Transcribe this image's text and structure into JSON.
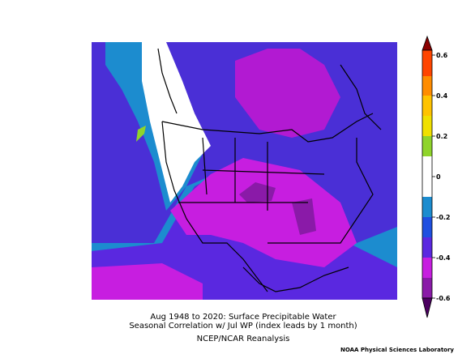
{
  "caption": {
    "line1": "Aug 1948 to 2020: Surface Precipitable Water",
    "line2": "Seasonal Correlation w/ Jul WP (index leads by 1 month)",
    "line3": "NCEP/NCAR Reanalysis",
    "credit": "NOAA Physical Sciences Laboratory"
  },
  "colorbar": {
    "range": [
      -0.6,
      0.6
    ],
    "ticks": [
      0.6,
      0.4,
      0.2,
      0,
      -0.2,
      -0.4,
      -0.6
    ]
  }
}
